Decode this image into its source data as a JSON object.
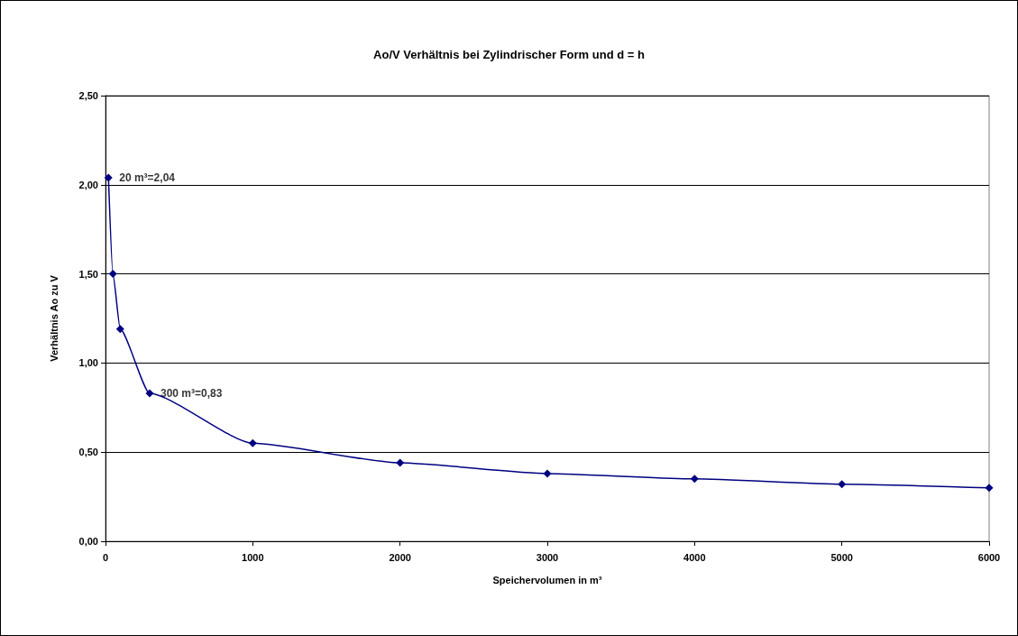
{
  "chart_data": {
    "type": "line",
    "title": "Ao/V Verhältnis bei Zylindrischer Form und d = h",
    "xlabel": "Speichervolumen in m³",
    "ylabel": "Verhältnis Ao zu V",
    "x": [
      20,
      50,
      100,
      300,
      1000,
      2000,
      3000,
      4000,
      5000,
      6000
    ],
    "series": [
      {
        "color": "#000080",
        "values": [
          2.04,
          1.5,
          1.19,
          0.83,
          0.55,
          0.44,
          0.38,
          0.35,
          0.32,
          0.3
        ]
      }
    ],
    "xlim": [
      0,
      6000
    ],
    "xticks": [
      0,
      1000,
      2000,
      3000,
      4000,
      5000,
      6000
    ],
    "ylim": [
      0,
      2.5
    ],
    "yticks": [
      {
        "value": 0,
        "label": "0,00"
      },
      {
        "value": 0.5,
        "label": "0,50"
      },
      {
        "value": 1,
        "label": "1,00"
      },
      {
        "value": 1.5,
        "label": "1,50"
      },
      {
        "value": 2,
        "label": "2,00"
      },
      {
        "value": 2.5,
        "label": "2,50"
      }
    ],
    "annotations": [
      {
        "text": "20 m³=2,04",
        "x": 20,
        "y": 2.04
      },
      {
        "text": "300 m³=0,83",
        "x": 300,
        "y": 0.83
      }
    ],
    "grid": "y",
    "marker": "diamond",
    "line_style": "solid"
  }
}
